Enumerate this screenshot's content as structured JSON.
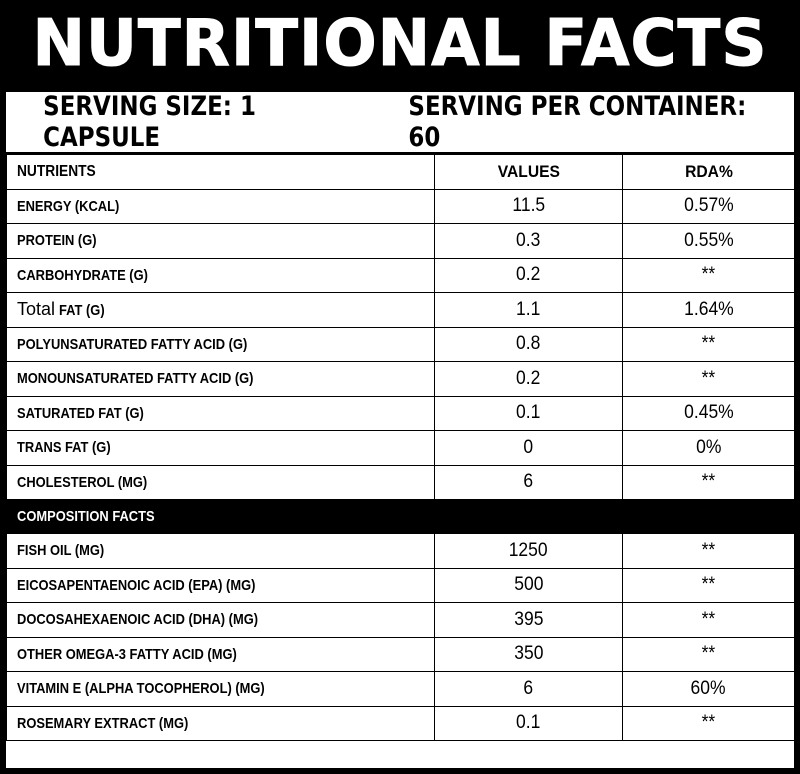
{
  "title": "NUTRITIONAL FACTS",
  "serving": {
    "size": "SERVING SIZE: 1 CAPSULE",
    "per_container": "SERVING PER CONTAINER: 60"
  },
  "table": {
    "headers": [
      "NUTRIENTS",
      "VALUES",
      "RDA%"
    ],
    "nutrients": [
      {
        "name": "ENERGY (KCAL)",
        "value": "11.5",
        "rda": "0.57%"
      },
      {
        "name": "PROTEIN (G)",
        "value": "0.3",
        "rda": "0.55%"
      },
      {
        "name": "CARBOHYDRATE (G)",
        "value": "0.2",
        "rda": "**"
      },
      {
        "name_prefix": "Total",
        "name": "FAT (G)",
        "value": "1.1",
        "rda": "1.64%"
      },
      {
        "name": "POLYUNSATURATED FATTY ACID (G)",
        "value": "0.8",
        "rda": "**"
      },
      {
        "name": "MONOUNSATURATED FATTY ACID (G)",
        "value": "0.2",
        "rda": "**"
      },
      {
        "name": "SATURATED FAT (G)",
        "value": "0.1",
        "rda": "0.45%"
      },
      {
        "name": "TRANS FAT (G)",
        "value": "0",
        "rda": "0%"
      },
      {
        "name": "CHOLESTEROL (MG)",
        "value": "6",
        "rda": "**"
      }
    ],
    "composition_heading": "COMPOSITION FACTS",
    "composition": [
      {
        "name": "FISH OIL (MG)",
        "value": "1250",
        "rda": "**"
      },
      {
        "name": "EICOSAPENTAENOIC ACID (EPA) (MG)",
        "value": "500",
        "rda": "**"
      },
      {
        "name": "DOCOSAHEXAENOIC ACID (DHA) (MG)",
        "value": "395",
        "rda": "**"
      },
      {
        "name": "OTHER OMEGA-3 FATTY ACID (MG)",
        "value": "350",
        "rda": "**"
      },
      {
        "name": "VITAMIN E (ALPHA TOCOPHEROL) (MG)",
        "value": "6",
        "rda": "60%"
      },
      {
        "name": "ROSEMARY EXTRACT (MG)",
        "value": "0.1",
        "rda": "**"
      }
    ]
  }
}
